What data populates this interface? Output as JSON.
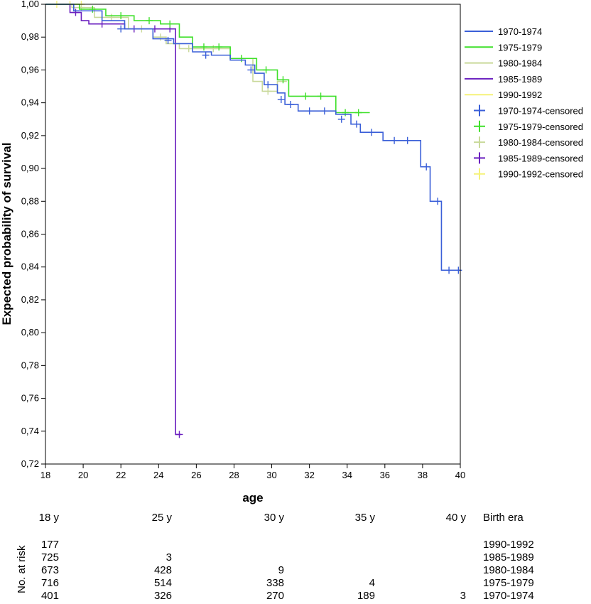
{
  "chart_data": {
    "type": "line",
    "subtype": "kaplan-meier step",
    "title": "",
    "xlabel": "age",
    "ylabel": "Expected probability of survival",
    "xlim": [
      18,
      40
    ],
    "ylim": [
      0.72,
      1.0
    ],
    "x_ticks": [
      "18",
      "20",
      "22",
      "24",
      "26",
      "28",
      "30",
      "32",
      "34",
      "36",
      "38",
      "40"
    ],
    "y_ticks": [
      "1,00",
      "0,98",
      "0,96",
      "0,94",
      "0,92",
      "0,90",
      "0,88",
      "0,86",
      "0,84",
      "0,82",
      "0,80",
      "0,78",
      "0,76",
      "0,74",
      "0,72"
    ],
    "grid": false,
    "legend_position": "right",
    "series": [
      {
        "name": "1970-1974",
        "color": "#3a5fd8",
        "points": [
          [
            18,
            1.0
          ],
          [
            19.5,
            0.996
          ],
          [
            21,
            0.99
          ],
          [
            22.2,
            0.985
          ],
          [
            23.7,
            0.979
          ],
          [
            24.8,
            0.976
          ],
          [
            25.8,
            0.971
          ],
          [
            26.8,
            0.969
          ],
          [
            27.8,
            0.966
          ],
          [
            28.6,
            0.963
          ],
          [
            29.1,
            0.958
          ],
          [
            29.6,
            0.951
          ],
          [
            30.3,
            0.946
          ],
          [
            30.7,
            0.939
          ],
          [
            31.4,
            0.935
          ],
          [
            33.4,
            0.933
          ],
          [
            34.2,
            0.927
          ],
          [
            34.7,
            0.922
          ],
          [
            35.9,
            0.917
          ],
          [
            37.9,
            0.901
          ],
          [
            38.4,
            0.88
          ],
          [
            39.0,
            0.838
          ],
          [
            40,
            0.838
          ]
        ],
        "censored": [
          [
            22.0,
            0.985
          ],
          [
            24.5,
            0.978
          ],
          [
            26.5,
            0.969
          ],
          [
            28.9,
            0.96
          ],
          [
            29.8,
            0.951
          ],
          [
            30.5,
            0.942
          ],
          [
            31.0,
            0.939
          ],
          [
            32.0,
            0.935
          ],
          [
            32.8,
            0.935
          ],
          [
            33.7,
            0.93
          ],
          [
            34.5,
            0.927
          ],
          [
            35.3,
            0.922
          ],
          [
            36.5,
            0.917
          ],
          [
            37.2,
            0.917
          ],
          [
            38.2,
            0.901
          ],
          [
            38.8,
            0.88
          ],
          [
            39.4,
            0.838
          ],
          [
            39.9,
            0.838
          ]
        ]
      },
      {
        "name": "1975-1979",
        "color": "#3fe02a",
        "points": [
          [
            18,
            1.0
          ],
          [
            19.8,
            0.997
          ],
          [
            21.2,
            0.993
          ],
          [
            22.7,
            0.99
          ],
          [
            24.1,
            0.988
          ],
          [
            25.1,
            0.98
          ],
          [
            25.8,
            0.974
          ],
          [
            27.8,
            0.967
          ],
          [
            29.2,
            0.96
          ],
          [
            30.3,
            0.954
          ],
          [
            30.9,
            0.944
          ],
          [
            33.4,
            0.934
          ],
          [
            35.2,
            0.934
          ]
        ],
        "censored": [
          [
            20.5,
            0.997
          ],
          [
            22.0,
            0.993
          ],
          [
            23.5,
            0.99
          ],
          [
            24.6,
            0.988
          ],
          [
            26.4,
            0.974
          ],
          [
            27.2,
            0.974
          ],
          [
            28.4,
            0.967
          ],
          [
            29.7,
            0.96
          ],
          [
            30.6,
            0.954
          ],
          [
            31.8,
            0.944
          ],
          [
            32.6,
            0.944
          ],
          [
            33.9,
            0.934
          ],
          [
            34.6,
            0.934
          ]
        ]
      },
      {
        "name": "1980-1984",
        "color": "#c9d99a",
        "points": [
          [
            18,
            1.0
          ],
          [
            19.4,
            0.998
          ],
          [
            20.6,
            0.992
          ],
          [
            22.4,
            0.985
          ],
          [
            23.7,
            0.98
          ],
          [
            24.4,
            0.976
          ],
          [
            25.1,
            0.973
          ],
          [
            27.8,
            0.967
          ],
          [
            29.0,
            0.953
          ],
          [
            29.5,
            0.947
          ],
          [
            30.3,
            0.953
          ],
          [
            30.8,
            0.953
          ]
        ],
        "censored": [
          [
            19.9,
            0.998
          ],
          [
            21.5,
            0.992
          ],
          [
            23.1,
            0.985
          ],
          [
            24.1,
            0.98
          ],
          [
            25.6,
            0.973
          ],
          [
            26.9,
            0.973
          ],
          [
            28.4,
            0.967
          ],
          [
            29.8,
            0.947
          ]
        ]
      },
      {
        "name": "1985-1989",
        "color": "#6a1fbf",
        "points": [
          [
            18,
            1.0
          ],
          [
            19.3,
            0.995
          ],
          [
            19.9,
            0.99
          ],
          [
            20.3,
            0.988
          ],
          [
            22.2,
            0.985
          ],
          [
            24.9,
            0.985
          ],
          [
            24.9,
            0.738
          ],
          [
            25.2,
            0.738
          ]
        ],
        "censored": [
          [
            19.6,
            0.995
          ],
          [
            21.0,
            0.988
          ],
          [
            22.7,
            0.985
          ],
          [
            23.8,
            0.985
          ],
          [
            24.6,
            0.985
          ],
          [
            25.1,
            0.738
          ]
        ]
      },
      {
        "name": "1990-1992",
        "color": "#f5f27a",
        "points": [
          [
            18,
            1.0
          ],
          [
            20,
            1.0
          ]
        ],
        "censored": [
          [
            18.6,
            1.0
          ],
          [
            19.3,
            1.0
          ],
          [
            19.9,
            1.0
          ]
        ]
      }
    ],
    "legend": [
      {
        "label": "1970-1974",
        "series": 0,
        "marker": "line"
      },
      {
        "label": "1975-1979",
        "series": 1,
        "marker": "line"
      },
      {
        "label": "1980-1984",
        "series": 2,
        "marker": "line"
      },
      {
        "label": "1985-1989",
        "series": 3,
        "marker": "line"
      },
      {
        "label": "1990-1992",
        "series": 4,
        "marker": "line"
      },
      {
        "label": "1970-1974-censored",
        "series": 0,
        "marker": "cross"
      },
      {
        "label": "1975-1979-censored",
        "series": 1,
        "marker": "cross"
      },
      {
        "label": "1980-1984-censored",
        "series": 2,
        "marker": "cross"
      },
      {
        "label": "1985-1989-censored",
        "series": 3,
        "marker": "cross"
      },
      {
        "label": "1990-1992-censored",
        "series": 4,
        "marker": "cross"
      }
    ]
  },
  "risk_table": {
    "ylabel": "No. at risk",
    "header_times": [
      "18 y",
      "25 y",
      "30 y",
      "35 y",
      "40 y"
    ],
    "header_era": "Birth era",
    "rows": [
      {
        "era": "1990-1992",
        "values": [
          "177",
          "",
          "",
          "",
          ""
        ]
      },
      {
        "era": "1985-1989",
        "values": [
          "725",
          "3",
          "",
          "",
          ""
        ]
      },
      {
        "era": "1980-1984",
        "values": [
          "673",
          "428",
          "9",
          "",
          ""
        ]
      },
      {
        "era": "1975-1979",
        "values": [
          "716",
          "514",
          "338",
          "4",
          ""
        ]
      },
      {
        "era": "1970-1974",
        "values": [
          "401",
          "326",
          "270",
          "189",
          "3"
        ]
      }
    ]
  }
}
